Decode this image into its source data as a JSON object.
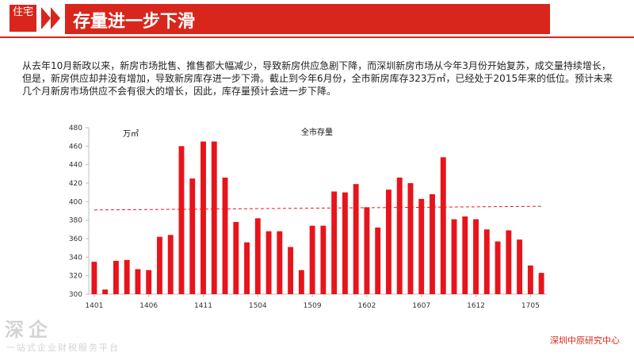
{
  "header": {
    "logo_text": "住宅",
    "title": "存量进一步下滑"
  },
  "description": "从去年10月新政以来，新房市场批售、推售都大幅减少，导致新房供应急剧下降，而深圳新房市场从今年3月份开始复苏，成交量持续增长，但是，新房供应却并没有增加，导致新房库存进一步下滑。截止到今年6月份，全市新房库存323万㎡，已经处于2015年来的低位。预计未来几个月新房市场供应不会有很大的增长，因此，库存量预计会进一步下降。",
  "chart_data": {
    "type": "bar",
    "title": "全市存量",
    "unit_label": "万㎡",
    "ylim": [
      300,
      480
    ],
    "yticks": [
      300,
      320,
      340,
      360,
      380,
      400,
      420,
      440,
      460,
      480
    ],
    "xtick_labels": [
      "1401",
      "1406",
      "1411",
      "1504",
      "1509",
      "1602",
      "1607",
      "1612",
      "1705"
    ],
    "xtick_indices": [
      0,
      5,
      10,
      15,
      20,
      25,
      30,
      35,
      40
    ],
    "values": [
      335,
      305,
      336,
      337,
      327,
      326,
      362,
      364,
      460,
      425,
      465,
      465,
      426,
      378,
      356,
      382,
      368,
      368,
      351,
      326,
      374,
      374,
      411,
      410,
      419,
      394,
      372,
      413,
      426,
      420,
      403,
      408,
      448,
      381,
      384,
      381,
      370,
      357,
      369,
      359,
      331,
      323
    ],
    "trend": {
      "start": 391,
      "end": 395
    },
    "bar_color": "#e8141b",
    "trend_color": "#e8141b"
  },
  "footer": {
    "brand": "深圳中原研究中心"
  },
  "watermark": {
    "main": "深企",
    "sub": "一站式企业财税服务平台"
  }
}
